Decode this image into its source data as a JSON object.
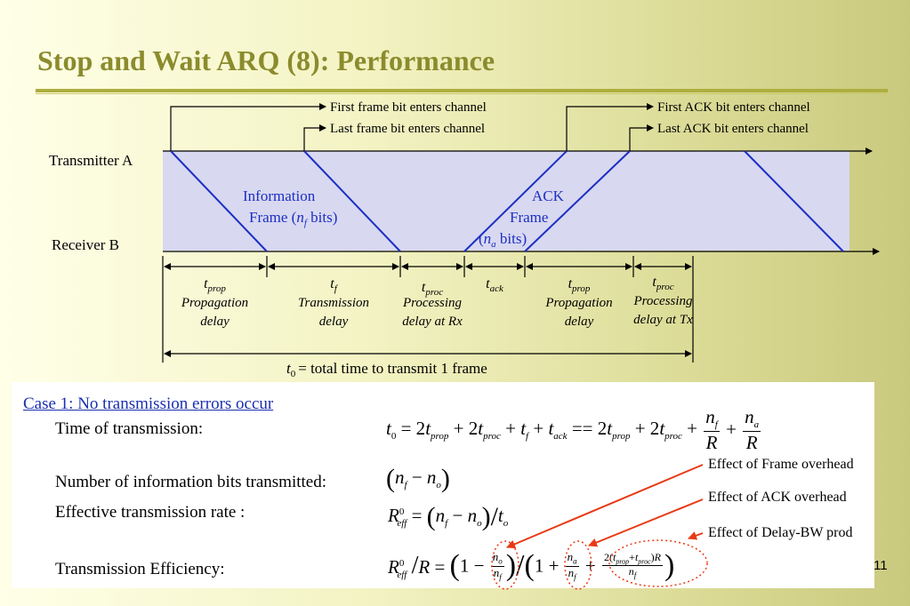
{
  "title": "Stop and Wait ARQ (8): Performance",
  "page_number": "11",
  "diagram": {
    "transmitter_label": "Transmitter A",
    "receiver_label": "Receiver B",
    "callouts": {
      "first_frame": "First frame bit enters channel",
      "last_frame": "Last frame bit enters channel",
      "first_ack": "First ACK bit enters channel",
      "last_ack": "Last ACK bit enters channel"
    },
    "info_frame": {
      "line1": "Information",
      "line2_prefix": "Frame (",
      "var": "n",
      "sub": "f",
      "line2_suffix": " bits)"
    },
    "ack_frame": {
      "line1": "ACK",
      "line2": "Frame",
      "line3_prefix": "(",
      "var": "n",
      "sub": "a",
      "line3_suffix": " bits)"
    },
    "intervals": [
      {
        "sym": "t",
        "sub": "prop",
        "desc1": "Propagation",
        "desc2": "delay"
      },
      {
        "sym": "t",
        "sub": "f",
        "desc1": "Transmission",
        "desc2": "delay"
      },
      {
        "sym": "t",
        "sub": "proc",
        "desc1": "Processing",
        "desc2": "delay at Rx"
      },
      {
        "sym": "t",
        "sub": "ack",
        "desc1": "",
        "desc2": ""
      },
      {
        "sym": "t",
        "sub": "prop",
        "desc1": "Propagation",
        "desc2": "delay"
      },
      {
        "sym": "t",
        "sub": "proc",
        "desc1": "Processing",
        "desc2": "delay at Tx"
      }
    ],
    "total": {
      "sym": "t",
      "sub": "0",
      "text": "= total time to transmit 1 frame"
    }
  },
  "case": {
    "heading": "Case 1: No transmission errors occur",
    "rows": [
      {
        "label": "Time of transmission:"
      },
      {
        "label": "Number of information bits transmitted:"
      },
      {
        "label": "Effective transmission rate :"
      },
      {
        "label": "Transmission Efficiency:"
      }
    ]
  },
  "annotations": [
    "Effect of Frame overhead",
    "Effect of ACK overhead",
    "Effect of Delay-BW prod"
  ],
  "colors": {
    "title": "#8b8b2e",
    "frame_area": "#d8d8f0",
    "frame_line": "#1c2fc4",
    "annotation_arrow": "#e83a14",
    "heading_link": "#1a2fb0"
  }
}
